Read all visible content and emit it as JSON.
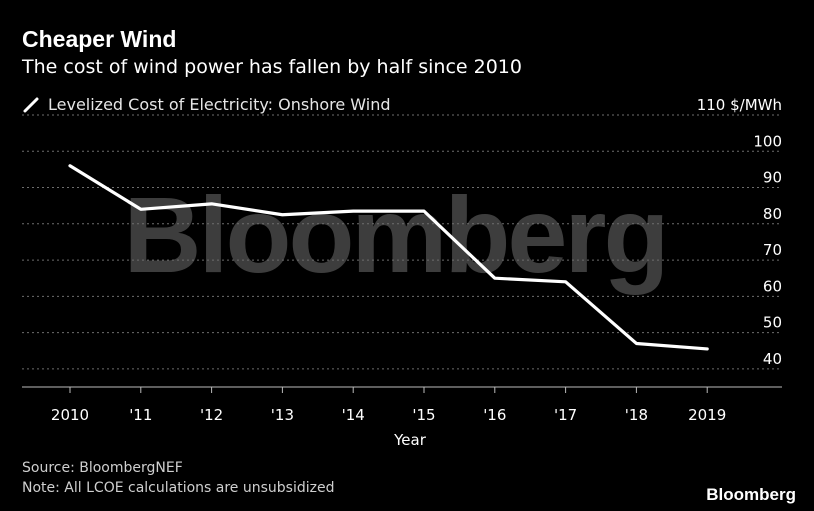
{
  "header": {
    "title": "Cheaper Wind",
    "subtitle": "The cost of wind power has fallen by half since 2010"
  },
  "chart_data": {
    "type": "line",
    "title": "Cheaper Wind",
    "subtitle": "The cost of wind power has fallen by half since 2010",
    "xlabel": "Year",
    "ylabel": "$/MWh",
    "categories": [
      "2010",
      "'11",
      "'12",
      "'13",
      "'14",
      "'15",
      "'16",
      "'17",
      "'18",
      "2019"
    ],
    "series": [
      {
        "name": "Levelized Cost of Electricity: Onshore Wind",
        "values": [
          96,
          84,
          85.5,
          82.5,
          83.5,
          83.5,
          65,
          64,
          47,
          45.5
        ],
        "color": "#ffffff"
      }
    ],
    "ylim": [
      35,
      110
    ],
    "yticks": [
      {
        "value": 110,
        "label": "110 $/MWh"
      },
      {
        "value": 100,
        "label": "100"
      },
      {
        "value": 90,
        "label": "90"
      },
      {
        "value": 80,
        "label": "80"
      },
      {
        "value": 70,
        "label": "70"
      },
      {
        "value": 60,
        "label": "60"
      },
      {
        "value": 50,
        "label": "50"
      },
      {
        "value": 40,
        "label": "40"
      }
    ],
    "grid": true,
    "legend_position": "top-left",
    "watermark": "Bloomberg"
  },
  "footer": {
    "source": "Source: BloombergNEF",
    "note": "Note: All LCOE calculations are unsubsidized",
    "brand": "Bloomberg"
  },
  "colors": {
    "background": "#000000",
    "line": "#ffffff",
    "grid": "#6e6e6e",
    "watermark": "#3d3d3d",
    "text": "#ffffff"
  }
}
